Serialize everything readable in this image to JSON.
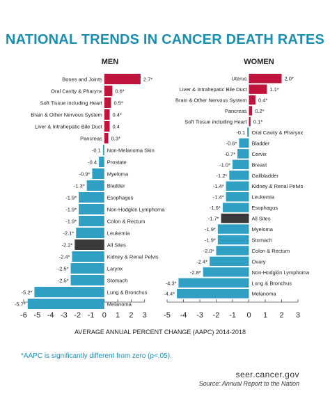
{
  "title": "NATIONAL TRENDS IN CANCER DEATH RATES",
  "footnote": "*AAPC is significantly different from zero (p<.05).",
  "site": "seer.cancer.gov",
  "source": "Source: Annual Report to the Nation",
  "colors": {
    "increase": "#c0143c",
    "decrease": "#2f9fc3",
    "all_sites": "#3a3a3a",
    "title": "#1a8fb5"
  },
  "chart_data": [
    {
      "type": "bar",
      "orientation": "horizontal",
      "panel_title": "MEN",
      "xlabel": "AVERAGE ANNUAL PERCENT CHANGE (AAPC) 2014-2018",
      "xlim": [
        -6,
        3
      ],
      "xticks": [
        -6,
        -5,
        -4,
        -3,
        -2,
        -1,
        0,
        1,
        2,
        3
      ],
      "bars": [
        {
          "category": "Bones and Joints",
          "value": 2.7,
          "label": "2.7*"
        },
        {
          "category": "Oral Cavity & Pharynx",
          "value": 0.6,
          "label": "0.6*"
        },
        {
          "category": "Soft Tissue including Heart",
          "value": 0.5,
          "label": "0.5*"
        },
        {
          "category": "Brain & Other Nervous System",
          "value": 0.4,
          "label": "0.4*"
        },
        {
          "category": "Liver & Intrahepatic Bile Duct",
          "value": 0.4,
          "label": "0.4"
        },
        {
          "category": "Pancreas",
          "value": 0.3,
          "label": "0.3*"
        },
        {
          "category": "Non-Melanoma Skin",
          "value": -0.1,
          "label": "-0.1"
        },
        {
          "category": "Prostate",
          "value": -0.4,
          "label": "-0.4"
        },
        {
          "category": "Myeloma",
          "value": -0.9,
          "label": "-0.9*"
        },
        {
          "category": "Bladder",
          "value": -1.3,
          "label": "-1.3*"
        },
        {
          "category": "Esophagus",
          "value": -1.9,
          "label": "-1.9*"
        },
        {
          "category": "Non-Hodgkin Lymphoma",
          "value": -1.9,
          "label": "-1.9*"
        },
        {
          "category": "Colon & Rectum",
          "value": -1.9,
          "label": "-1.9*"
        },
        {
          "category": "Leukemia",
          "value": -2.1,
          "label": "-2.1*"
        },
        {
          "category": "All Sites",
          "value": -2.2,
          "label": "-2.2*",
          "highlight": true
        },
        {
          "category": "Kidney & Renal Pelvis",
          "value": -2.4,
          "label": "-2.4*"
        },
        {
          "category": "Larynx",
          "value": -2.5,
          "label": "-2.5*"
        },
        {
          "category": "Stomach",
          "value": -2.5,
          "label": "-2.5*"
        },
        {
          "category": "Lung & Bronchus",
          "value": -5.2,
          "label": "-5.2*"
        },
        {
          "category": "Melanoma",
          "value": -5.7,
          "label": "-5.7*"
        }
      ]
    },
    {
      "type": "bar",
      "orientation": "horizontal",
      "panel_title": "WOMEN",
      "xlabel": "AVERAGE ANNUAL PERCENT CHANGE (AAPC) 2014-2018",
      "xlim": [
        -5,
        3
      ],
      "xticks": [
        -5,
        -4,
        -3,
        -2,
        -1,
        0,
        1,
        2,
        3
      ],
      "bars": [
        {
          "category": "Uterus",
          "value": 2.0,
          "label": "2.0*"
        },
        {
          "category": "Liver & Intrahepatic Bile Duct",
          "value": 1.1,
          "label": "1.1*"
        },
        {
          "category": "Brain & Other Nervous System",
          "value": 0.4,
          "label": "0.4*"
        },
        {
          "category": "Pancreas",
          "value": 0.2,
          "label": "0.2*"
        },
        {
          "category": "Soft Tissue including Heart",
          "value": 0.1,
          "label": "0.1*"
        },
        {
          "category": "Oral Cavity & Pharynx",
          "value": -0.1,
          "label": "-0.1"
        },
        {
          "category": "Bladder",
          "value": -0.6,
          "label": "-0.6*"
        },
        {
          "category": "Cervix",
          "value": -0.7,
          "label": "-0.7*"
        },
        {
          "category": "Breast",
          "value": -1.0,
          "label": "-1.0*"
        },
        {
          "category": "Gallbladder",
          "value": -1.2,
          "label": "-1.2*"
        },
        {
          "category": "Kidney & Renal Pelvis",
          "value": -1.4,
          "label": "-1.4*"
        },
        {
          "category": "Leukemia",
          "value": -1.4,
          "label": "-1.4*"
        },
        {
          "category": "Esophagus",
          "value": -1.6,
          "label": "-1.6*"
        },
        {
          "category": "All Sites",
          "value": -1.7,
          "label": "-1.7*",
          "highlight": true
        },
        {
          "category": "Myeloma",
          "value": -1.9,
          "label": "-1.9*"
        },
        {
          "category": "Stomach",
          "value": -1.9,
          "label": "-1.9*"
        },
        {
          "category": "Colon & Rectum",
          "value": -2.0,
          "label": "-2.0*"
        },
        {
          "category": "Ovary",
          "value": -2.4,
          "label": "-2.4*"
        },
        {
          "category": "Non-Hodgkin Lymphoma",
          "value": -2.8,
          "label": "-2.8*"
        },
        {
          "category": "Lung & Bronchus",
          "value": -4.3,
          "label": "-4.3*"
        },
        {
          "category": "Melanoma",
          "value": -4.4,
          "label": "-4.4*"
        }
      ]
    }
  ]
}
